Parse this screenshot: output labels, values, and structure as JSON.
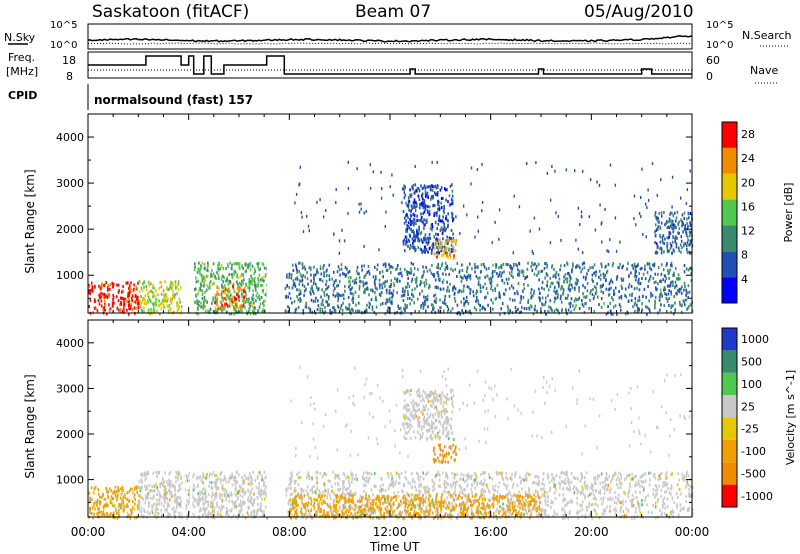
{
  "header": {
    "station": "Saskatoon (fitACF)",
    "beam": "Beam 07",
    "date": "05/Aug/2010"
  },
  "status_panels": {
    "nsky_label": "N.Sky",
    "nsky_ticks": [
      "10^5",
      "10^0"
    ],
    "nsearch_label": "N.Search",
    "freq_label_line1": "Freq.",
    "freq_label_line2": "[MHz]",
    "freq_ticks": [
      "18",
      "8"
    ],
    "nave_ticks": [
      "60",
      "0"
    ],
    "nave_label": "Nave",
    "cpid_label": "CPID",
    "cpid_text": "normalsound (fast) 157"
  },
  "chart_data": [
    {
      "type": "heatmap",
      "title": "",
      "xlabel": "Time UT",
      "ylabel": "Slant Range [km]",
      "x_ticks": [
        "00:00",
        "04:00",
        "08:00",
        "12:00",
        "16:00",
        "20:00",
        "00:00"
      ],
      "xlim_hours": [
        0,
        24
      ],
      "y_ticks": [
        1000,
        2000,
        3000,
        4000
      ],
      "ylim_km": [
        180,
        4500
      ],
      "colorbar": {
        "label": "Power [dB]",
        "ticks": [
          4,
          8,
          12,
          16,
          20,
          24,
          28
        ],
        "range": [
          0,
          30
        ],
        "colors": [
          "#0000ff",
          "#2050b4",
          "#3a8a6e",
          "#50c850",
          "#e6c800",
          "#f08c00",
          "#ff0000"
        ]
      },
      "echo_regions": [
        {
          "t0": 0.0,
          "t1": 2.0,
          "r0": 180,
          "r1": 880,
          "value": 28
        },
        {
          "t0": 2.0,
          "t1": 3.7,
          "r0": 180,
          "r1": 900,
          "value": 18
        },
        {
          "t0": 4.2,
          "t1": 7.1,
          "r0": 180,
          "r1": 1300,
          "value": 14
        },
        {
          "t0": 5.0,
          "t1": 6.2,
          "r0": 300,
          "r1": 800,
          "value": 24
        },
        {
          "t0": 7.8,
          "t1": 24.0,
          "r0": 180,
          "r1": 1300,
          "value": 9
        },
        {
          "t0": 12.5,
          "t1": 14.5,
          "r0": 1500,
          "r1": 3000,
          "value": 6
        },
        {
          "t0": 13.7,
          "t1": 14.6,
          "r0": 1400,
          "r1": 1800,
          "value": 22
        },
        {
          "t0": 22.5,
          "t1": 24.0,
          "r0": 1500,
          "r1": 2400,
          "value": 8
        }
      ],
      "data_gaps_hours": [
        [
          3.75,
          3.85
        ],
        [
          4.05,
          4.15
        ],
        [
          7.1,
          7.7
        ]
      ]
    },
    {
      "type": "heatmap",
      "title": "",
      "xlabel": "Time UT",
      "ylabel": "Slant Range [km]",
      "x_ticks": [
        "00:00",
        "04:00",
        "08:00",
        "12:00",
        "16:00",
        "20:00",
        "00:00"
      ],
      "xlim_hours": [
        0,
        24
      ],
      "y_ticks": [
        1000,
        2000,
        3000,
        4000
      ],
      "ylim_km": [
        180,
        4500
      ],
      "colorbar": {
        "label": "Velocity [m s^-1]",
        "ticks": [
          "1000",
          "500",
          "100",
          "25",
          "-25",
          "-100",
          "-500",
          "-1000"
        ],
        "colors": [
          "#1e3cc8",
          "#3a8a6e",
          "#50c850",
          "#c8c8c8",
          "#e6c800",
          "#f0a000",
          "#f08c00",
          "#ff0000"
        ]
      },
      "echo_regions": [
        {
          "t0": 0.0,
          "t1": 2.0,
          "r0": 180,
          "r1": 880,
          "value": -100
        },
        {
          "t0": 2.0,
          "t1": 7.1,
          "r0": 180,
          "r1": 1200,
          "value": 25
        },
        {
          "t0": 7.8,
          "t1": 24.0,
          "r0": 180,
          "r1": 1200,
          "value": 25
        },
        {
          "t0": 8.0,
          "t1": 18.0,
          "r0": 180,
          "r1": 700,
          "value": -100
        },
        {
          "t0": 13.7,
          "t1": 14.6,
          "r0": 1400,
          "r1": 1800,
          "value": -500
        },
        {
          "t0": 12.5,
          "t1": 14.5,
          "r0": 1900,
          "r1": 3000,
          "value": 25
        }
      ],
      "data_gaps_hours": [
        [
          3.75,
          3.85
        ],
        [
          4.05,
          4.15
        ],
        [
          7.1,
          7.7
        ]
      ]
    }
  ]
}
